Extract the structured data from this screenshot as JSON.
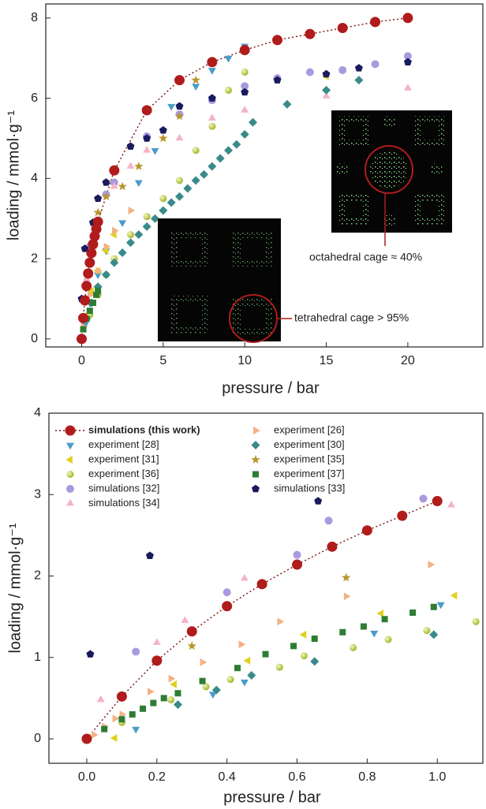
{
  "chart_data": [
    {
      "type": "scatter",
      "xlabel": "pressure / bar",
      "ylabel": "loading / mmol·g⁻¹",
      "xlim": [
        -2.2,
        24.6
      ],
      "ylim": [
        -0.2,
        8.35
      ],
      "xticks": [
        0,
        5,
        10,
        15,
        20
      ],
      "yticks": [
        0,
        2,
        4,
        6,
        8
      ],
      "annotations": [
        "octahedral cage ≈ 40%",
        "tetrahedral cage > 95%"
      ],
      "series": [
        {
          "marker": "circle",
          "color": "#b01c1c",
          "line": true,
          "line_color": "#7a1010",
          "x": [
            0,
            0.1,
            0.2,
            0.3,
            0.4,
            0.5,
            0.6,
            0.7,
            0.8,
            0.9,
            1,
            2,
            4,
            6,
            8,
            10,
            12,
            14,
            16,
            18,
            20
          ],
          "values": [
            0,
            0.52,
            0.96,
            1.32,
            1.63,
            1.9,
            2.14,
            2.36,
            2.56,
            2.74,
            2.92,
            4.2,
            5.7,
            6.45,
            6.9,
            7.2,
            7.45,
            7.6,
            7.75,
            7.9,
            8.0
          ]
        },
        {
          "marker": "triangle-down",
          "color": "#4a9cc9",
          "x": [
            0.2,
            0.5,
            1,
            1.5,
            2.5,
            3.5,
            4.5,
            5.5,
            7,
            8,
            9,
            10
          ],
          "values": [
            0.35,
            0.9,
            1.6,
            2.2,
            2.9,
            3.9,
            4.7,
            5.8,
            6.3,
            6.7,
            7.0,
            7.3
          ]
        },
        {
          "marker": "triangle-left",
          "color": "#e0d020",
          "x": [
            0.3,
            0.6,
            1,
            1.5,
            2,
            15
          ],
          "values": [
            0.6,
            1.2,
            1.7,
            2.2,
            2.6,
            6.55
          ]
        },
        {
          "marker": "sphere",
          "color": "#b5c832",
          "x": [
            0.5,
            1,
            1.5,
            2,
            3,
            4,
            5,
            6,
            7,
            8,
            9,
            10
          ],
          "values": [
            0.6,
            1.1,
            1.6,
            2.0,
            2.6,
            3.05,
            3.5,
            3.95,
            4.7,
            5.3,
            6.2,
            6.65
          ]
        },
        {
          "marker": "circle",
          "color": "#a99ae0",
          "x": [
            0.5,
            1,
            1.5,
            2,
            4,
            6,
            8,
            10,
            12,
            14,
            16,
            18,
            20
          ],
          "values": [
            2.3,
            2.9,
            3.6,
            3.9,
            5.05,
            5.6,
            5.95,
            6.3,
            6.5,
            6.65,
            6.7,
            6.85,
            7.05
          ]
        },
        {
          "marker": "triangle-up",
          "color": "#f4b4c8",
          "x": [
            0.3,
            0.7,
            1,
            2,
            3,
            4,
            6,
            8,
            10,
            15,
            20
          ],
          "values": [
            1.5,
            2.3,
            2.9,
            3.8,
            4.3,
            4.7,
            5.0,
            5.5,
            5.7,
            6.05,
            6.25
          ]
        },
        {
          "marker": "triangle-right",
          "color": "#f4b183",
          "x": [
            0.1,
            0.3,
            0.5,
            1,
            1.5,
            2,
            3
          ],
          "values": [
            0.3,
            0.9,
            1.1,
            1.7,
            2.3,
            2.7,
            3.2
          ]
        },
        {
          "marker": "diamond",
          "color": "#3a8a8a",
          "x": [
            0.3,
            0.6,
            1,
            1.5,
            2,
            2.5,
            3,
            3.5,
            4,
            4.5,
            5,
            5.5,
            6,
            6.5,
            7,
            7.5,
            8,
            8.5,
            9,
            9.5,
            10,
            10.5,
            12.6,
            15,
            17
          ],
          "values": [
            0.5,
            0.9,
            1.3,
            1.6,
            1.9,
            2.15,
            2.4,
            2.6,
            2.8,
            3.0,
            3.2,
            3.4,
            3.55,
            3.75,
            3.95,
            4.1,
            4.3,
            4.5,
            4.7,
            4.85,
            5.1,
            5.4,
            5.85,
            6.2,
            6.45
          ]
        },
        {
          "marker": "star",
          "color": "#b8962e",
          "x": [
            1,
            1.5,
            2.5,
            3.5,
            5,
            6,
            7
          ],
          "values": [
            3.15,
            3.55,
            3.8,
            4.3,
            5.0,
            5.55,
            6.45
          ]
        },
        {
          "marker": "square",
          "color": "#2e7d32",
          "x": [
            0.1,
            0.3,
            0.5,
            0.7,
            0.9,
            1
          ],
          "values": [
            0.24,
            0.5,
            0.7,
            0.9,
            1.1,
            1.2
          ]
        },
        {
          "marker": "pentagon",
          "color": "#1a1a5e",
          "x": [
            0,
            0.2,
            0.7,
            1,
            1.5,
            2,
            3,
            4,
            5,
            6,
            8,
            10,
            12,
            15,
            17,
            20
          ],
          "values": [
            1.0,
            2.25,
            2.9,
            3.5,
            3.9,
            4.2,
            4.8,
            5.0,
            5.2,
            5.8,
            6.0,
            6.15,
            6.45,
            6.6,
            6.75,
            6.9
          ]
        }
      ]
    },
    {
      "type": "scatter",
      "xlabel": "pressure / bar",
      "ylabel": "loading / mmol·g⁻¹",
      "xlim": [
        -0.108,
        1.13
      ],
      "ylim": [
        -0.3,
        4
      ],
      "xticks": [
        {
          "value": 0,
          "label": "0.0"
        },
        {
          "value": 0.2,
          "label": "0.2"
        },
        {
          "value": 0.4,
          "label": "0.4"
        },
        {
          "value": 0.6,
          "label": "0.6"
        },
        {
          "value": 0.8,
          "label": "0.8"
        },
        {
          "value": 1,
          "label": "1.0"
        }
      ],
      "yticks": [
        0,
        1,
        2,
        3,
        4
      ],
      "series": [
        {
          "name": "simulations (this work)",
          "marker": "circle",
          "color": "#b01c1c",
          "line": true,
          "line_color": "#7a1010",
          "x": [
            0,
            0.1,
            0.2,
            0.3,
            0.4,
            0.5,
            0.6,
            0.7,
            0.8,
            0.9,
            1.0
          ],
          "values": [
            0,
            0.52,
            0.96,
            1.32,
            1.63,
            1.9,
            2.14,
            2.36,
            2.56,
            2.74,
            2.92
          ]
        },
        {
          "name": "experiment [28]",
          "marker": "triangle-down",
          "color": "#4a9cc9",
          "x": [
            0.14,
            0.36,
            0.45,
            0.82,
            1.01
          ],
          "values": [
            0.12,
            0.55,
            0.7,
            1.3,
            1.65
          ]
        },
        {
          "name": "experiment [31]",
          "marker": "triangle-left",
          "color": "#e0d020",
          "x": [
            0.08,
            0.25,
            0.46,
            0.62,
            0.84,
            1.05
          ],
          "values": [
            0.01,
            0.67,
            0.96,
            1.28,
            1.54,
            1.76
          ]
        },
        {
          "name": "experiment [36]",
          "marker": "sphere",
          "color": "#b5c832",
          "x": [
            0.1,
            0.24,
            0.34,
            0.41,
            0.55,
            0.62,
            0.76,
            0.86,
            0.97,
            1.11
          ],
          "values": [
            0.2,
            0.48,
            0.64,
            0.73,
            0.88,
            1.02,
            1.12,
            1.22,
            1.33,
            1.44
          ]
        },
        {
          "name": "simulations [32]",
          "marker": "circle",
          "color": "#a99ae0",
          "x": [
            0.14,
            0.4,
            0.6,
            0.69,
            0.96
          ],
          "values": [
            1.07,
            1.8,
            2.26,
            2.68,
            2.95
          ]
        },
        {
          "name": "simulations [34]",
          "marker": "triangle-up",
          "color": "#f4b4c8",
          "x": [
            0.04,
            0.2,
            0.28,
            0.45,
            1.04
          ],
          "values": [
            0.48,
            1.18,
            1.45,
            1.97,
            2.87
          ]
        },
        {
          "name": "experiment [26]",
          "marker": "triangle-right",
          "color": "#f4b183",
          "x": [
            0.02,
            0.05,
            0.08,
            0.1,
            0.18,
            0.24,
            0.33,
            0.44,
            0.55,
            0.74,
            0.98
          ],
          "values": [
            0.05,
            0.15,
            0.25,
            0.3,
            0.58,
            0.74,
            0.94,
            1.16,
            1.44,
            1.75,
            2.14
          ]
        },
        {
          "name": "experiment [30]",
          "marker": "diamond",
          "color": "#3a8a8a",
          "x": [
            0.26,
            0.37,
            0.47,
            0.65,
            0.99
          ],
          "values": [
            0.42,
            0.6,
            0.78,
            0.95,
            1.28
          ]
        },
        {
          "name": "experiment [35]",
          "marker": "star",
          "color": "#b8962e",
          "x": [
            0.3,
            0.74
          ],
          "values": [
            1.14,
            1.98
          ]
        },
        {
          "name": "experiment [37]",
          "marker": "square",
          "color": "#2e7d32",
          "x": [
            0.05,
            0.1,
            0.13,
            0.16,
            0.19,
            0.22,
            0.26,
            0.33,
            0.43,
            0.51,
            0.59,
            0.65,
            0.73,
            0.79,
            0.85,
            0.93,
            0.99
          ],
          "values": [
            0.12,
            0.24,
            0.3,
            0.37,
            0.44,
            0.5,
            0.56,
            0.71,
            0.87,
            1.04,
            1.14,
            1.23,
            1.31,
            1.38,
            1.47,
            1.55,
            1.62
          ]
        },
        {
          "name": "simulations [33]",
          "marker": "pentagon",
          "color": "#1a1a5e",
          "x": [
            0.01,
            0.18,
            0.66
          ],
          "values": [
            1.04,
            2.25,
            2.92
          ]
        }
      ]
    }
  ]
}
